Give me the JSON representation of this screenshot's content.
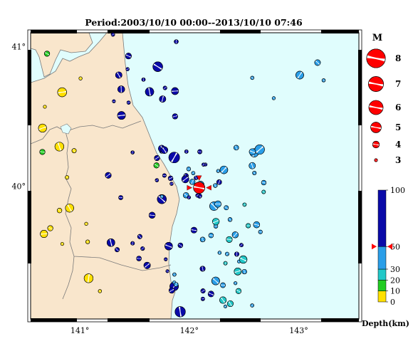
{
  "title": "Period:2003/10/10 00:00--2013/10/10 07:46",
  "map": {
    "lon_range": [
      140.55,
      143.55
    ],
    "lat_range": [
      39.05,
      41.1
    ],
    "lon_ticks": [
      {
        "value": 141,
        "label": "141°"
      },
      {
        "value": 142,
        "label": "142°"
      },
      {
        "value": 143,
        "label": "143°"
      }
    ],
    "lat_ticks": [
      {
        "value": 40,
        "label": "40°"
      },
      {
        "value": 41,
        "label": "41°"
      }
    ],
    "colors": {
      "land": "#f9e6cc",
      "sea": "#e0fdfd",
      "border": "#7a7a7a",
      "mainshock": "#ff0000",
      "marker": "#ff0000"
    },
    "mainshock": {
      "lon": 142.09,
      "lat": 39.99,
      "mag": 6.0
    }
  },
  "magnitude_legend": {
    "title": "M",
    "entries": [
      "8",
      "7",
      "6",
      "5",
      "4",
      "3"
    ]
  },
  "depth_scale": {
    "title": "Depth(km)",
    "labels": [
      "100",
      "50",
      "30",
      "20",
      "10",
      "0"
    ],
    "bands": [
      {
        "from": 0,
        "to": 10,
        "color": "#ffe000"
      },
      {
        "from": 10,
        "to": 20,
        "color": "#22cc22"
      },
      {
        "from": 20,
        "to": 30,
        "color": "#22c8c8"
      },
      {
        "from": 30,
        "to": 50,
        "color": "#2a9ee8"
      },
      {
        "from": 50,
        "to": 100,
        "color": "#0a0aa8"
      }
    ],
    "marker_depth": 50
  }
}
